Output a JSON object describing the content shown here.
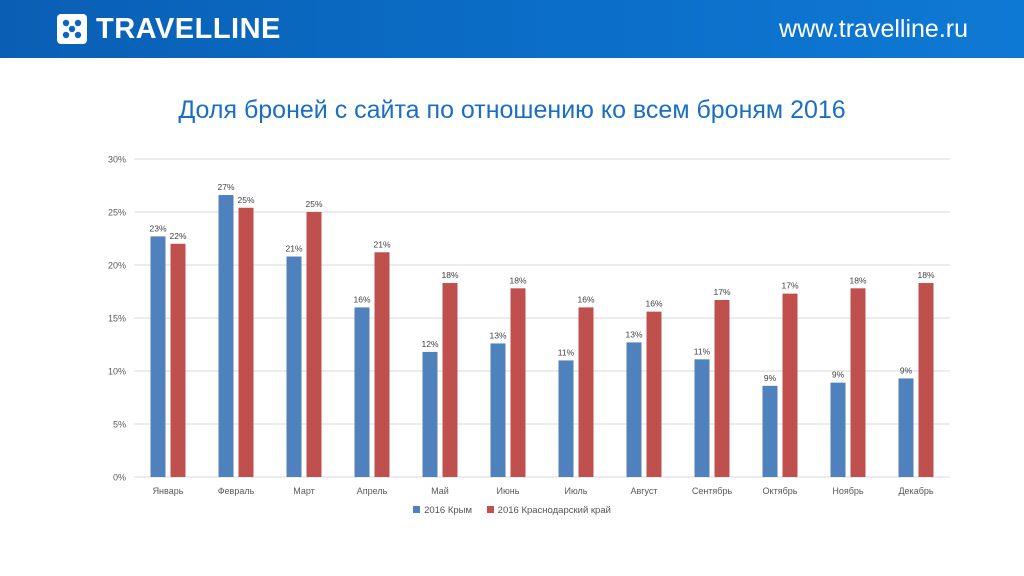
{
  "header": {
    "brand": "TRAVELLINE",
    "brand_icon": "dice-logo-icon",
    "site_url": "www.travelline.ru",
    "colors": {
      "bar": "#0b66c3",
      "text": "#ffffff"
    }
  },
  "chart_data": {
    "type": "bar",
    "title": "Доля броней с сайта по отношению ко всем броням 2016",
    "categories": [
      "Январь",
      "Февраль",
      "Март",
      "Апрель",
      "Май",
      "Июнь",
      "Июль",
      "Август",
      "Сентябрь",
      "Октябрь",
      "Ноябрь",
      "Декабрь"
    ],
    "series": [
      {
        "name": "2016 Крым",
        "color": "#4f81bd",
        "values": [
          22.7,
          26.6,
          20.8,
          16.0,
          11.8,
          12.6,
          11.0,
          12.7,
          11.1,
          8.6,
          8.9,
          9.3
        ],
        "labels": [
          "23%",
          "27%",
          "21%",
          "16%",
          "12%",
          "13%",
          "11%",
          "13%",
          "11%",
          "9%",
          "9%",
          "9%"
        ]
      },
      {
        "name": "2016 Краснодарский край",
        "color": "#c0504d",
        "values": [
          22.0,
          25.4,
          25.0,
          21.2,
          18.3,
          17.8,
          16.0,
          15.6,
          16.7,
          17.3,
          17.8,
          18.3
        ],
        "labels": [
          "22%",
          "25%",
          "25%",
          "21%",
          "18%",
          "18%",
          "16%",
          "16%",
          "17%",
          "17%",
          "18%",
          "18%"
        ]
      }
    ],
    "ylim": [
      0,
      30
    ],
    "yticks": [
      "0%",
      "5%",
      "10%",
      "15%",
      "20%",
      "25%",
      "30%"
    ],
    "grid": true,
    "legend_position": "bottom"
  }
}
